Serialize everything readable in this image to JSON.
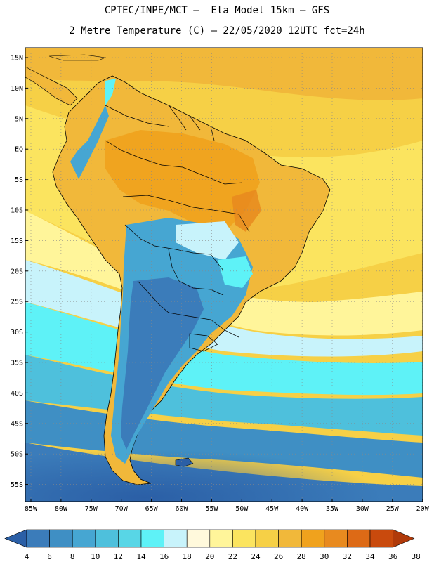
{
  "header": {
    "line1": "CPTEC/INPE/MCT –  Eta Model 15km – GFS",
    "line2": "2 Metre Temperature (C) – 22/05/2020 12UTC fct=24h"
  },
  "map": {
    "lat_labels": [
      "15N",
      "10N",
      "5N",
      "EQ",
      "5S",
      "10S",
      "15S",
      "20S",
      "25S",
      "30S",
      "35S",
      "40S",
      "45S",
      "50S",
      "55S"
    ],
    "lon_labels": [
      "85W",
      "80W",
      "75W",
      "70W",
      "65W",
      "60W",
      "55W",
      "50W",
      "45W",
      "40W",
      "35W",
      "30W",
      "25W",
      "20W"
    ]
  },
  "colorbar": {
    "labels": [
      "4",
      "6",
      "8",
      "10",
      "12",
      "14",
      "16",
      "18",
      "20",
      "22",
      "24",
      "26",
      "28",
      "30",
      "32",
      "34",
      "36",
      "38"
    ],
    "colors": [
      "#2b5fa6",
      "#3b7cba",
      "#3f8fc4",
      "#46a6d2",
      "#4ec0dc",
      "#58d6e6",
      "#5ef2f7",
      "#c8f3fb",
      "#fff9dc",
      "#fff59a",
      "#fbe45f",
      "#f6d046",
      "#f1b83a",
      "#f0a21d",
      "#e88a1f",
      "#dd6a16",
      "#c94a0d",
      "#b03a0a"
    ]
  }
}
